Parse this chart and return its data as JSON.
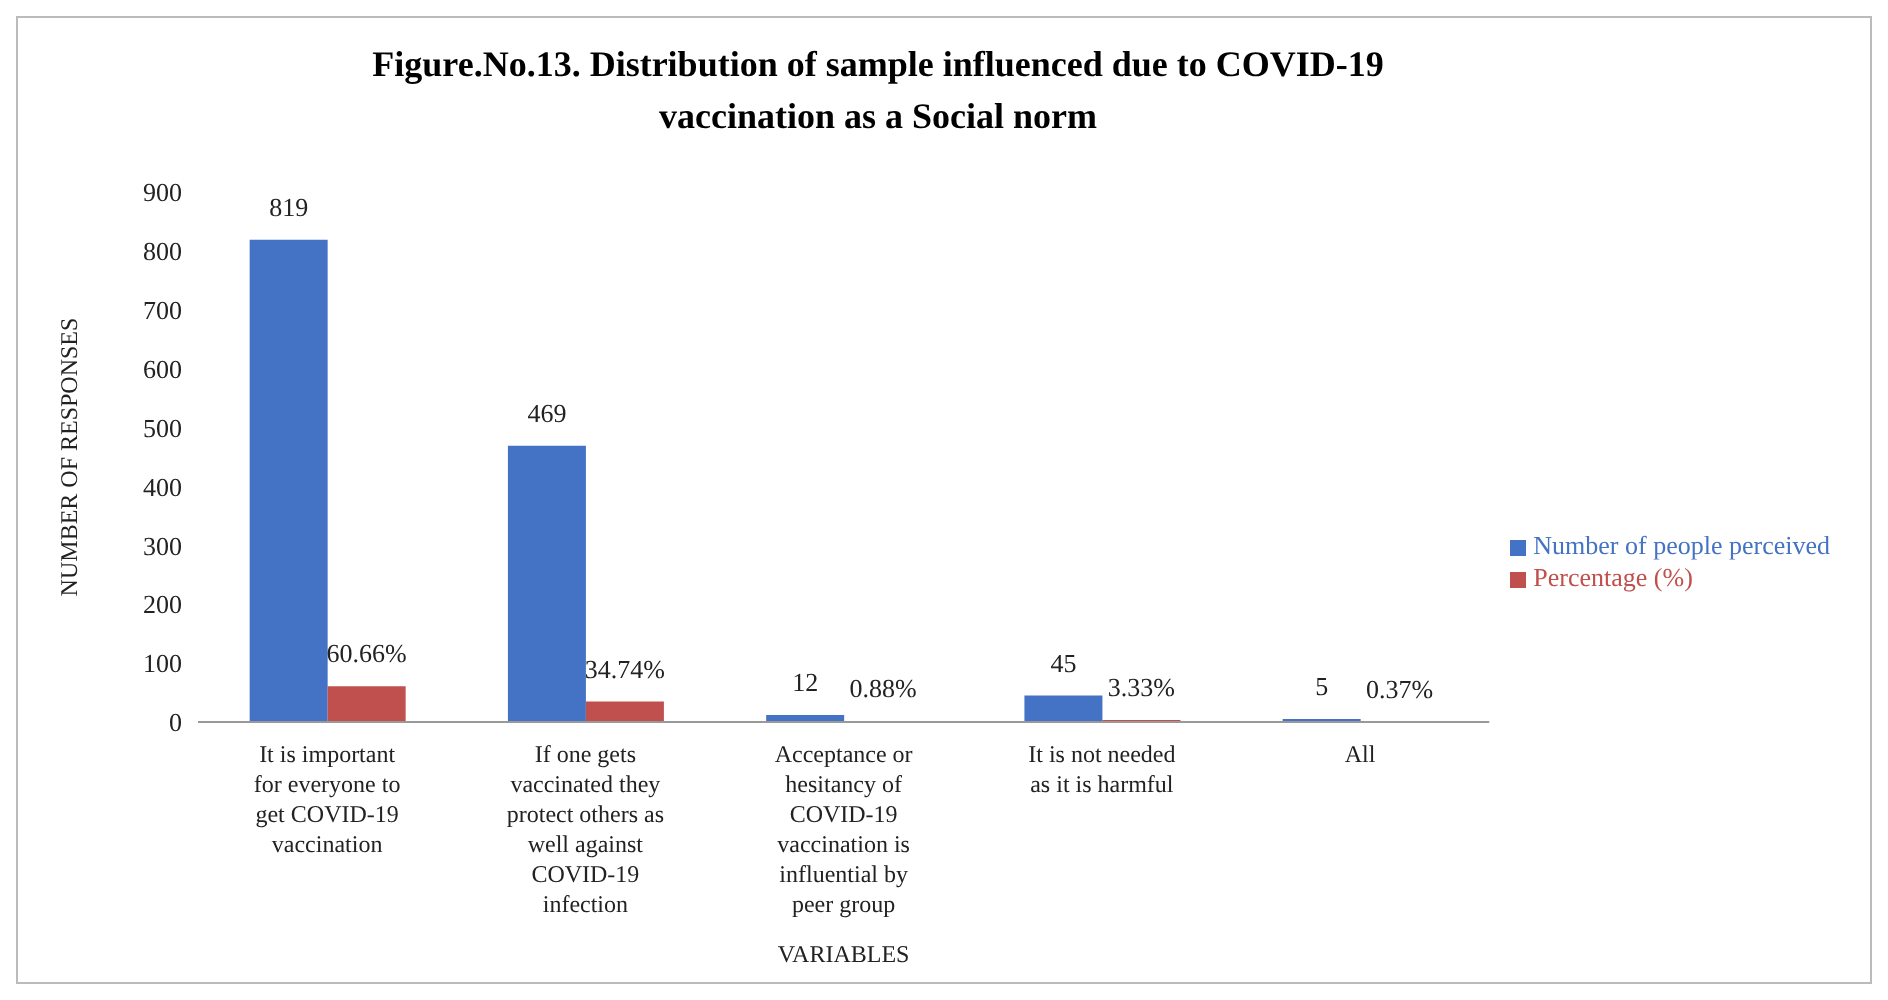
{
  "chart_data": {
    "type": "bar",
    "title": "Figure.No.13. Distribution of sample influenced due to COVID-19 vaccination as a Social norm",
    "xlabel": "VARIABLES",
    "ylabel": "NUMBER OF RESPONSES",
    "categories": [
      "It is important for everyone to get COVID-19 vaccination",
      "If one gets vaccinated they protect others as well against COVID-19 infection",
      "Acceptance or hesitancy of COVID-19 vaccination is influential by peer group",
      "It is not needed as it is harmful",
      "All"
    ],
    "series": [
      {
        "name": "Number of people perceived",
        "color": "#4472c4",
        "values": [
          819,
          469,
          12,
          45,
          5
        ],
        "value_labels": [
          "819",
          "469",
          "12",
          "45",
          "5"
        ]
      },
      {
        "name": "Percentage (%)",
        "color": "#c0504d",
        "values": [
          60.66,
          34.74,
          0.88,
          3.33,
          0.37
        ],
        "value_labels": [
          "60.66%",
          "34.74%",
          "0.88%",
          "3.33%",
          "0.37%"
        ]
      }
    ],
    "ylim": [
      0,
      900
    ],
    "yticks": [
      0,
      100,
      200,
      300,
      400,
      500,
      600,
      700,
      800,
      900
    ],
    "grid": false,
    "legend": "right"
  }
}
